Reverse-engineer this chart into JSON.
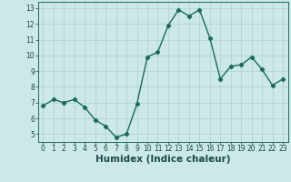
{
  "x": [
    0,
    1,
    2,
    3,
    4,
    5,
    6,
    7,
    8,
    9,
    10,
    11,
    12,
    13,
    14,
    15,
    16,
    17,
    18,
    19,
    20,
    21,
    22,
    23
  ],
  "y": [
    6.8,
    7.2,
    7.0,
    7.2,
    6.7,
    5.9,
    5.5,
    4.8,
    5.0,
    6.9,
    9.9,
    10.2,
    11.9,
    12.9,
    12.5,
    12.9,
    11.1,
    8.5,
    9.3,
    9.4,
    9.9,
    9.1,
    8.1,
    8.5
  ],
  "xlabel": "Humidex (Indice chaleur)",
  "ylim": [
    4.5,
    13.4
  ],
  "xlim": [
    -0.5,
    23.5
  ],
  "yticks": [
    5,
    6,
    7,
    8,
    9,
    10,
    11,
    12,
    13
  ],
  "xticks": [
    0,
    1,
    2,
    3,
    4,
    5,
    6,
    7,
    8,
    9,
    10,
    11,
    12,
    13,
    14,
    15,
    16,
    17,
    18,
    19,
    20,
    21,
    22,
    23
  ],
  "line_color": "#1a6b5a",
  "marker": "D",
  "marker_size": 2.2,
  "line_width": 1.0,
  "bg_color": "#cce8e8",
  "grid_color": "#b0d0d0",
  "tick_fontsize": 5.5,
  "xlabel_fontsize": 7.5
}
